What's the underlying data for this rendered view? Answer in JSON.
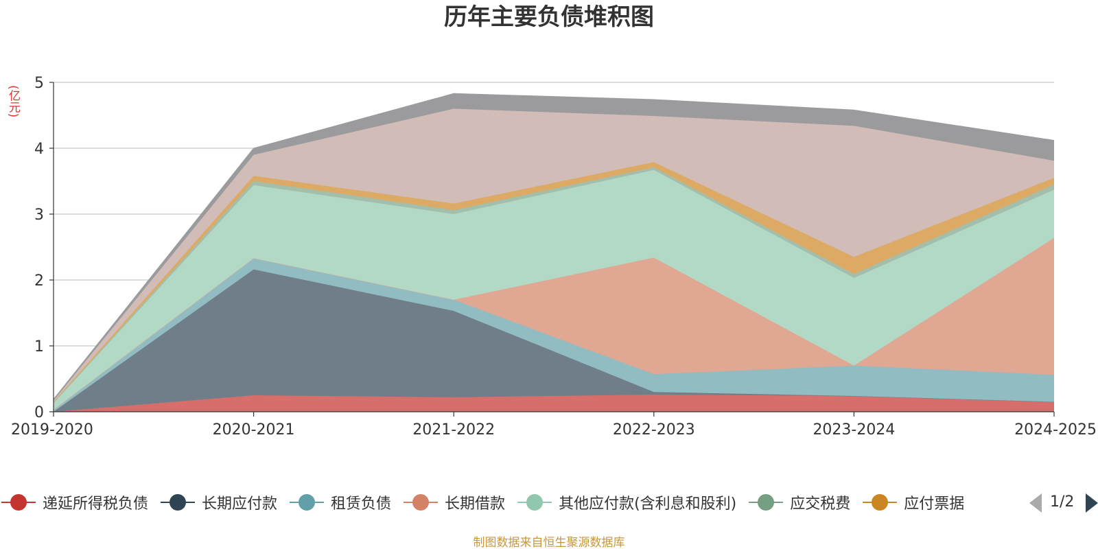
{
  "title": "历年主要负债堆积图",
  "unit": "(亿元)",
  "source": "制图数据来自恒生聚源数据库",
  "pager": "1/2",
  "chart_data": {
    "type": "area",
    "stacked": true,
    "categories": [
      "2019-2020",
      "2020-2021",
      "2021-2022",
      "2022-2023",
      "2023-2024",
      "2024-2025"
    ],
    "ylim": [
      0,
      5
    ],
    "yticks": [
      "0",
      "1",
      "2",
      "3",
      "4",
      "5"
    ],
    "grid": true,
    "legend_position": "bottom",
    "series": [
      {
        "name": "递延所得税负债",
        "color": "#c23531",
        "fill": "#d66e6c",
        "values": [
          0.0,
          0.25,
          0.22,
          0.26,
          0.24,
          0.15
        ]
      },
      {
        "name": "长期应付款",
        "color": "#2f4554",
        "fill": "#6f7e88",
        "values": [
          0.0,
          1.91,
          1.31,
          0.04,
          0.0,
          0.0
        ]
      },
      {
        "name": "租赁负债",
        "color": "#61a0a8",
        "fill": "#90bcc2",
        "values": [
          0.03,
          0.17,
          0.17,
          0.27,
          0.46,
          0.41
        ]
      },
      {
        "name": "长期借款",
        "color": "#d48265",
        "fill": "#e0a793",
        "values": [
          0.0,
          0.0,
          0.0,
          1.77,
          0.0,
          2.08
        ]
      },
      {
        "name": "其他应付款(含利息和股利)",
        "color": "#91c7ae",
        "fill": "#b2d9c6",
        "values": [
          0.1,
          1.11,
          1.3,
          1.33,
          1.33,
          0.73
        ]
      },
      {
        "name": "应交税费",
        "color": "#749f83",
        "fill": "#a3bfac",
        "values": [
          0.01,
          0.06,
          0.06,
          0.04,
          0.06,
          0.08
        ]
      },
      {
        "name": "应付票据",
        "color": "#ca8622",
        "fill": "#dcaa64",
        "values": [
          0.01,
          0.08,
          0.1,
          0.08,
          0.26,
          0.1
        ]
      },
      {
        "name": "",
        "color": "#bda29a",
        "fill": "#d1bcb7",
        "values": [
          0.02,
          0.32,
          1.44,
          0.7,
          1.99,
          0.26
        ]
      },
      {
        "name": "",
        "color": "#6e7074",
        "fill": "#9b9b9e",
        "values": [
          0.02,
          0.1,
          0.23,
          0.25,
          0.24,
          0.31
        ]
      }
    ]
  },
  "legend_items": [
    {
      "label": "递延所得税负债",
      "color": "#c23531"
    },
    {
      "label": "长期应付款",
      "color": "#2f4554"
    },
    {
      "label": "租赁负债",
      "color": "#61a0a8"
    },
    {
      "label": "长期借款",
      "color": "#d48265"
    },
    {
      "label": "其他应付款(含利息和股利)",
      "color": "#91c7ae"
    },
    {
      "label": "应交税费",
      "color": "#749f83"
    },
    {
      "label": "应付票据",
      "color": "#ca8622"
    }
  ]
}
